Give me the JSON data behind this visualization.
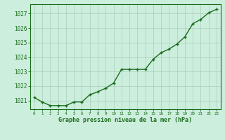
{
  "x": [
    0,
    1,
    2,
    3,
    4,
    5,
    6,
    7,
    8,
    9,
    10,
    11,
    12,
    13,
    14,
    15,
    16,
    17,
    18,
    19,
    20,
    21,
    22,
    23
  ],
  "y": [
    1021.2,
    1020.9,
    1020.65,
    1020.65,
    1020.65,
    1020.9,
    1020.9,
    1021.4,
    1021.6,
    1021.85,
    1022.2,
    1023.15,
    1023.15,
    1023.15,
    1023.15,
    1023.85,
    1024.3,
    1024.55,
    1024.9,
    1025.4,
    1026.3,
    1026.6,
    1027.05,
    1027.3
  ],
  "line_color": "#1a6b1a",
  "marker_color": "#1a6b1a",
  "bg_color": "#cceedd",
  "grid_color": "#aaccbb",
  "xlabel": "Graphe pression niveau de la mer (hPa)",
  "xlabel_color": "#1a6b1a",
  "ytick_labels": [
    "1021",
    "1022",
    "1023",
    "1024",
    "1025",
    "1026",
    "1027"
  ],
  "ytick_values": [
    1021,
    1022,
    1023,
    1024,
    1025,
    1026,
    1027
  ],
  "ylim": [
    1020.4,
    1027.65
  ],
  "xlim": [
    -0.5,
    23.5
  ],
  "xtick_labels": [
    "0",
    "1",
    "2",
    "3",
    "4",
    "5",
    "6",
    "7",
    "8",
    "9",
    "10",
    "11",
    "12",
    "13",
    "14",
    "15",
    "16",
    "17",
    "18",
    "19",
    "20",
    "21",
    "22",
    "23"
  ],
  "tick_color": "#1a6b1a",
  "spine_color": "#1a6b1a",
  "marker_size": 3.5,
  "line_width": 1.0
}
